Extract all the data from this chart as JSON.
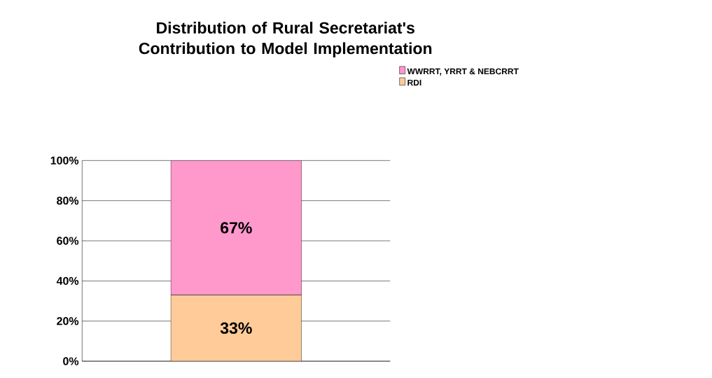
{
  "chart_data": {
    "type": "bar",
    "stacked": true,
    "title": "Distribution of Rural Secretariat's Contribution to Model Implementation",
    "categories": [
      null
    ],
    "series": [
      {
        "name": "RDI",
        "color": "#ffcc99",
        "values": [
          33
        ],
        "value_labels": [
          "33%"
        ]
      },
      {
        "name": "WWRRT, YRRT & NEBCRRT",
        "color": "#ff99cc",
        "values": [
          67
        ],
        "value_labels": [
          "67%"
        ]
      }
    ],
    "ylim": [
      0,
      100
    ],
    "yticks": [
      {
        "value": 0,
        "label": "0%"
      },
      {
        "value": 20,
        "label": "20%"
      },
      {
        "value": 40,
        "label": "40%"
      },
      {
        "value": 60,
        "label": "60%"
      },
      {
        "value": 80,
        "label": "80%"
      },
      {
        "value": 100,
        "label": "100%"
      }
    ],
    "grid": "y",
    "legend": "top right"
  }
}
